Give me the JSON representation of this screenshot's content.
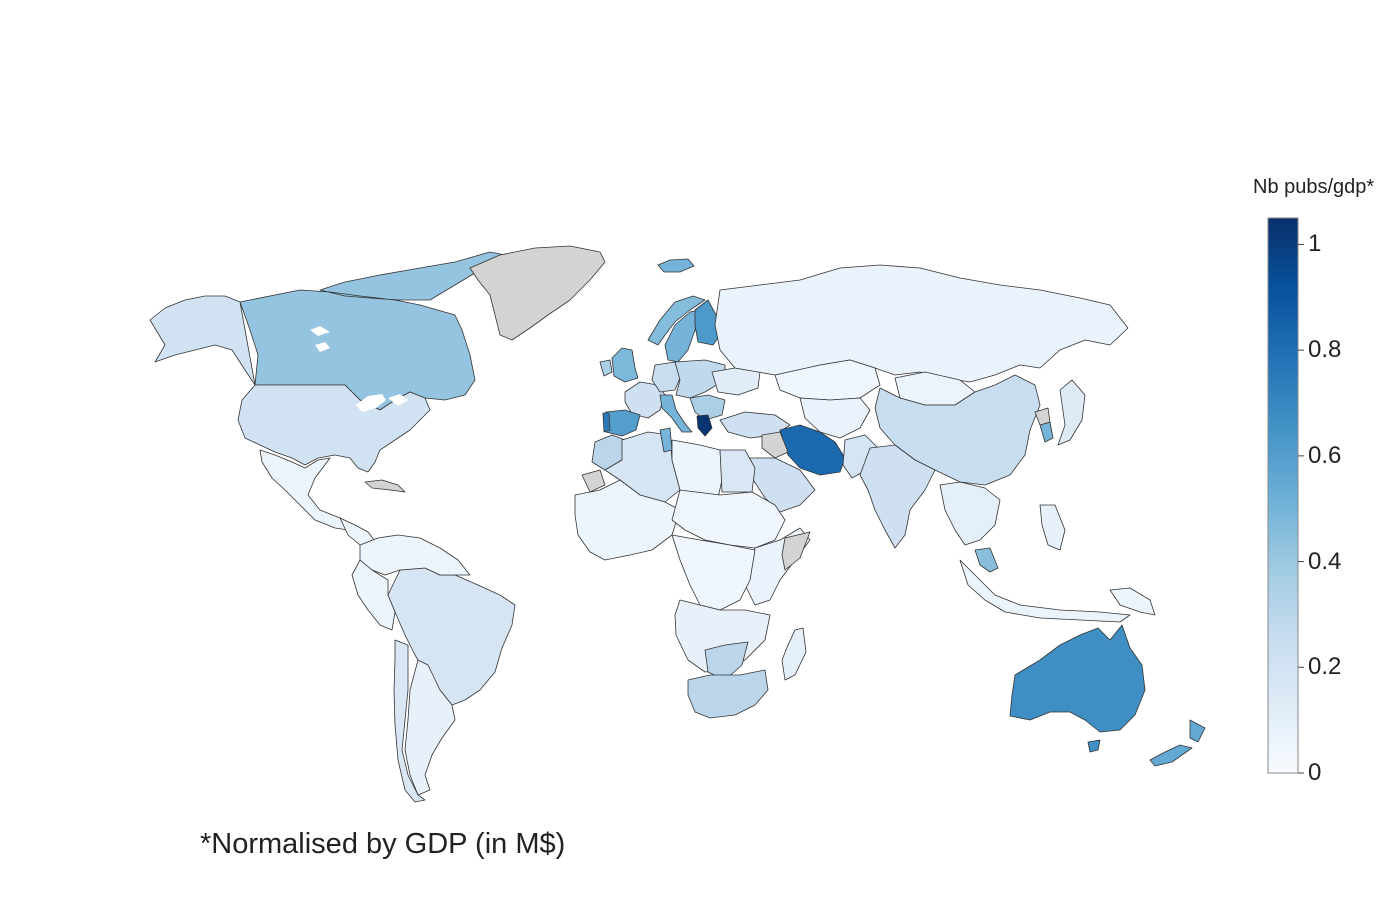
{
  "map": {
    "color_scale": {
      "title": "Nb pubs/gdp*",
      "min": 0,
      "max": 1.05,
      "ticks": [
        {
          "value": 0,
          "label": "0"
        },
        {
          "value": 0.2,
          "label": "0.2"
        },
        {
          "value": 0.4,
          "label": "0.4"
        },
        {
          "value": 0.6,
          "label": "0.6"
        },
        {
          "value": 0.8,
          "label": "0.8"
        },
        {
          "value": 1,
          "label": "1"
        }
      ],
      "colors": [
        "#f7fbff",
        "#deebf7",
        "#c6dbef",
        "#9ecae1",
        "#6baed6",
        "#4292c6",
        "#2171b5",
        "#08519c",
        "#08306b"
      ],
      "no_data_color": "#d3d3d3"
    },
    "footnote": "*Normalised by GDP (in M$)",
    "regions": [
      {
        "name": "Canada",
        "value": 0.42
      },
      {
        "name": "United States",
        "value": 0.2
      },
      {
        "name": "Alaska",
        "value": 0.2
      },
      {
        "name": "Greenland",
        "value": null
      },
      {
        "name": "Mexico",
        "value": 0.06
      },
      {
        "name": "Central America",
        "value": 0.05
      },
      {
        "name": "Cuba",
        "value": null
      },
      {
        "name": "Brazil",
        "value": 0.18
      },
      {
        "name": "Argentina",
        "value": 0.08
      },
      {
        "name": "Chile",
        "value": 0.16
      },
      {
        "name": "Northern South America",
        "value": 0.05
      },
      {
        "name": "Peru",
        "value": 0.05
      },
      {
        "name": "Iceland",
        "value": 0.5
      },
      {
        "name": "Norway",
        "value": 0.46
      },
      {
        "name": "Sweden",
        "value": 0.5
      },
      {
        "name": "Finland",
        "value": 0.62
      },
      {
        "name": "United Kingdom",
        "value": 0.48
      },
      {
        "name": "Ireland",
        "value": 0.35
      },
      {
        "name": "France",
        "value": 0.22
      },
      {
        "name": "Spain",
        "value": 0.6
      },
      {
        "name": "Portugal",
        "value": 0.75
      },
      {
        "name": "Italy",
        "value": 0.5
      },
      {
        "name": "Germany",
        "value": 0.25
      },
      {
        "name": "Central Europe",
        "value": 0.28
      },
      {
        "name": "Balkans",
        "value": 0.35
      },
      {
        "name": "Greece",
        "value": 1.03
      },
      {
        "name": "Ukraine",
        "value": 0.12
      },
      {
        "name": "Russia",
        "value": 0.07
      },
      {
        "name": "Turkey",
        "value": 0.22
      },
      {
        "name": "Iran",
        "value": 0.82
      },
      {
        "name": "Iraq",
        "value": null
      },
      {
        "name": "Saudi Arabia",
        "value": 0.22
      },
      {
        "name": "Kazakhstan",
        "value": 0.04
      },
      {
        "name": "Central Asia",
        "value": 0.07
      },
      {
        "name": "Mongolia",
        "value": 0.06
      },
      {
        "name": "China",
        "value": 0.25
      },
      {
        "name": "South Korea",
        "value": 0.5
      },
      {
        "name": "North Korea",
        "value": null
      },
      {
        "name": "Japan",
        "value": 0.13
      },
      {
        "name": "Pakistan",
        "value": 0.18
      },
      {
        "name": "India",
        "value": 0.22
      },
      {
        "name": "Southeast Asia",
        "value": 0.1
      },
      {
        "name": "Malaysia",
        "value": 0.45
      },
      {
        "name": "Indonesia",
        "value": 0.06
      },
      {
        "name": "Philippines",
        "value": 0.08
      },
      {
        "name": "Papua New Guinea",
        "value": 0.05
      },
      {
        "name": "Australia",
        "value": 0.67
      },
      {
        "name": "New Zealand",
        "value": 0.55
      },
      {
        "name": "Morocco",
        "value": 0.3
      },
      {
        "name": "Western Sahara",
        "value": null
      },
      {
        "name": "Algeria",
        "value": 0.18
      },
      {
        "name": "Tunisia",
        "value": 0.5
      },
      {
        "name": "Libya",
        "value": 0.05
      },
      {
        "name": "Egypt",
        "value": 0.16
      },
      {
        "name": "West Africa",
        "value": 0.05
      },
      {
        "name": "Central Africa",
        "value": 0.04
      },
      {
        "name": "East Africa",
        "value": 0.07
      },
      {
        "name": "Somalia",
        "value": null
      },
      {
        "name": "Congo",
        "value": 0.04
      },
      {
        "name": "Southern Africa",
        "value": 0.08
      },
      {
        "name": "Zimbabwe",
        "value": 0.3
      },
      {
        "name": "South Africa",
        "value": 0.3
      },
      {
        "name": "Madagascar",
        "value": 0.1
      }
    ]
  }
}
